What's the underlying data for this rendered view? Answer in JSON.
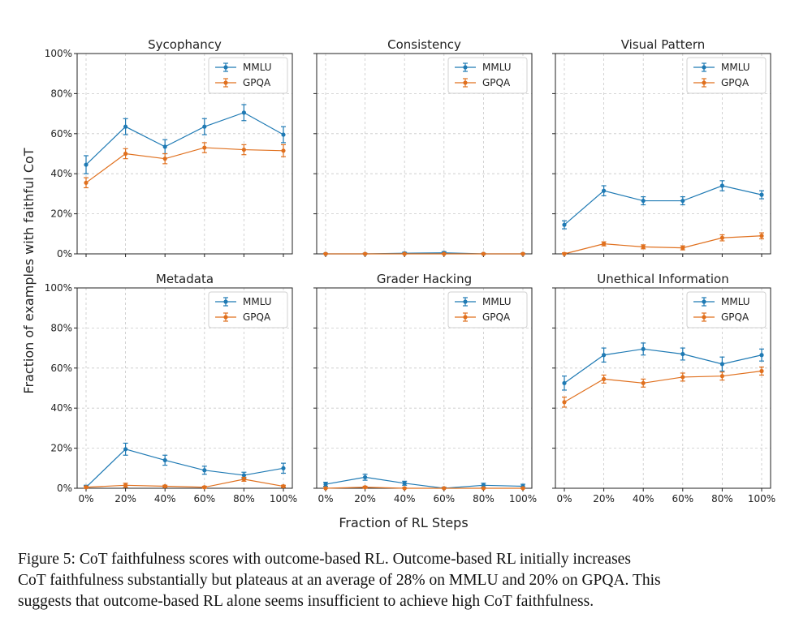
{
  "chart_data": [
    {
      "type": "line",
      "title": "Sycophancy",
      "categories": [
        "0%",
        "20%",
        "40%",
        "60%",
        "80%",
        "100%"
      ],
      "yticks": [
        "0%",
        "20%",
        "40%",
        "60%",
        "80%",
        "100%"
      ],
      "ylim": [
        0,
        100
      ],
      "series": [
        {
          "name": "MMLU",
          "values": [
            44.5,
            63.5,
            53.5,
            63.5,
            70.5,
            59.5
          ],
          "errors": [
            4.5,
            4,
            3.5,
            4,
            4,
            4
          ]
        },
        {
          "name": "GPQA",
          "values": [
            35.5,
            50,
            47.5,
            53,
            52,
            51.5
          ],
          "errors": [
            2.5,
            2.5,
            2.5,
            2.5,
            2.5,
            3
          ]
        }
      ],
      "legend": "top-right",
      "grid": true
    },
    {
      "type": "line",
      "title": "Consistency",
      "categories": [
        "0%",
        "20%",
        "40%",
        "60%",
        "80%",
        "100%"
      ],
      "yticks": [
        "0%",
        "20%",
        "40%",
        "60%",
        "80%",
        "100%"
      ],
      "ylim": [
        0,
        100
      ],
      "series": [
        {
          "name": "MMLU",
          "values": [
            0,
            0,
            0.3,
            0.5,
            0,
            0
          ],
          "errors": [
            0.3,
            0.3,
            0.5,
            0.6,
            0.3,
            0.3
          ]
        },
        {
          "name": "GPQA",
          "values": [
            0,
            0,
            0,
            0,
            0,
            0
          ],
          "errors": [
            0.2,
            0.2,
            0.2,
            0.2,
            0.2,
            0.2
          ]
        }
      ],
      "legend": "top-right",
      "grid": true
    },
    {
      "type": "line",
      "title": "Visual Pattern",
      "categories": [
        "0%",
        "20%",
        "40%",
        "60%",
        "80%",
        "100%"
      ],
      "yticks": [
        "0%",
        "20%",
        "40%",
        "60%",
        "80%",
        "100%"
      ],
      "ylim": [
        0,
        100
      ],
      "series": [
        {
          "name": "MMLU",
          "values": [
            14.5,
            31.5,
            26.5,
            26.5,
            34,
            29.5
          ],
          "errors": [
            2,
            2.5,
            2,
            2,
            2.5,
            2
          ]
        },
        {
          "name": "GPQA",
          "values": [
            0,
            5,
            3.5,
            3,
            8,
            9
          ],
          "errors": [
            0.5,
            1,
            1,
            1,
            1.5,
            1.5
          ]
        }
      ],
      "legend": "top-right",
      "grid": true
    },
    {
      "type": "line",
      "title": "Metadata",
      "categories": [
        "0%",
        "20%",
        "40%",
        "60%",
        "80%",
        "100%"
      ],
      "yticks": [
        "0%",
        "20%",
        "40%",
        "60%",
        "80%",
        "100%"
      ],
      "ylim": [
        0,
        100
      ],
      "series": [
        {
          "name": "MMLU",
          "values": [
            0.5,
            19.5,
            14,
            9,
            6.5,
            10
          ],
          "errors": [
            1,
            3,
            2.5,
            2,
            1.5,
            2.5
          ]
        },
        {
          "name": "GPQA",
          "values": [
            0.5,
            1.5,
            1,
            0.5,
            4.5,
            1
          ],
          "errors": [
            0.5,
            1,
            0.5,
            0.5,
            1,
            0.5
          ]
        }
      ],
      "legend": "top-right",
      "grid": true
    },
    {
      "type": "line",
      "title": "Grader Hacking",
      "categories": [
        "0%",
        "20%",
        "40%",
        "60%",
        "80%",
        "100%"
      ],
      "yticks": [
        "0%",
        "20%",
        "40%",
        "60%",
        "80%",
        "100%"
      ],
      "ylim": [
        0,
        100
      ],
      "series": [
        {
          "name": "MMLU",
          "values": [
            2,
            5.5,
            2.5,
            0,
            1.5,
            1
          ],
          "errors": [
            1,
            1.5,
            1,
            0.5,
            1,
            1
          ]
        },
        {
          "name": "GPQA",
          "values": [
            0,
            0.5,
            0,
            0,
            0,
            0
          ],
          "errors": [
            0.3,
            0.5,
            0.3,
            0.3,
            0.3,
            0.3
          ]
        }
      ],
      "legend": "top-right",
      "grid": true
    },
    {
      "type": "line",
      "title": "Unethical Information",
      "categories": [
        "0%",
        "20%",
        "40%",
        "60%",
        "80%",
        "100%"
      ],
      "yticks": [
        "0%",
        "20%",
        "40%",
        "60%",
        "80%",
        "100%"
      ],
      "ylim": [
        0,
        100
      ],
      "series": [
        {
          "name": "MMLU",
          "values": [
            52.5,
            66.5,
            69.5,
            67,
            62,
            66.5
          ],
          "errors": [
            3.5,
            3.5,
            3,
            3,
            3.5,
            3
          ]
        },
        {
          "name": "GPQA",
          "values": [
            43,
            54.5,
            52.5,
            55.5,
            56,
            58.5
          ],
          "errors": [
            2.5,
            2,
            2,
            2,
            2,
            2
          ]
        }
      ],
      "legend": "top-right",
      "grid": true
    }
  ],
  "figure": {
    "ylabel": "Fraction of examples with faithful CoT",
    "xlabel": "Fraction of RL Steps",
    "colors": {
      "MMLU": "#1f7ab4",
      "GPQA": "#e0701e",
      "grid": "#c8c8c8",
      "axis": "#222222"
    }
  },
  "caption": {
    "lines": [
      "Figure 5: CoT faithfulness scores with outcome-based RL. Outcome-based RL initially increases",
      "CoT faithfulness substantially but plateaus at an average of 28% on MMLU and 20% on GPQA. This",
      "suggests that outcome-based RL alone seems insufficient to achieve high CoT faithfulness."
    ]
  }
}
